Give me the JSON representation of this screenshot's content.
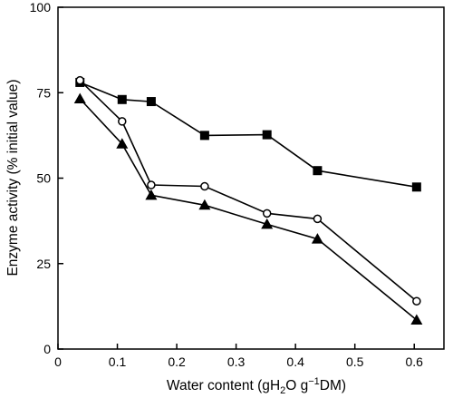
{
  "chart_data": {
    "type": "line",
    "title": "",
    "xlabel": "Water content (gH₂Og⁻¹DM)",
    "xlabel_parts": {
      "prefix": "Water content (g",
      "h": "H",
      "sub": "2",
      "o": "O g",
      "sup": "−1",
      "suffix": "DM)"
    },
    "ylabel": "Enzyme activity (% initial value)",
    "xlim": [
      0,
      0.65
    ],
    "ylim": [
      0,
      100
    ],
    "x_ticks": [
      0,
      0.1,
      0.2,
      0.3,
      0.4,
      0.5,
      0.6
    ],
    "x_tick_labels": [
      "0",
      "0.1",
      "0.2",
      "0.3",
      "0.4",
      "0.5",
      "0.6"
    ],
    "y_ticks": [
      0,
      25,
      50,
      75,
      100
    ],
    "y_tick_labels": [
      "0",
      "25",
      "50",
      "75",
      "100"
    ],
    "grid": false,
    "legend": "none",
    "series": [
      {
        "marker": "square",
        "fill": "#000000",
        "points": [
          {
            "x": 0.037,
            "y": 78
          },
          {
            "x": 0.108,
            "y": 73
          },
          {
            "x": 0.157,
            "y": 72.4
          },
          {
            "x": 0.247,
            "y": 62.5
          },
          {
            "x": 0.352,
            "y": 62.7
          },
          {
            "x": 0.437,
            "y": 52.2
          },
          {
            "x": 0.604,
            "y": 47.4
          }
        ]
      },
      {
        "marker": "circle",
        "fill": "#ffffff",
        "points": [
          {
            "x": 0.037,
            "y": 78.6
          },
          {
            "x": 0.108,
            "y": 66.6
          },
          {
            "x": 0.157,
            "y": 48
          },
          {
            "x": 0.247,
            "y": 47.6
          },
          {
            "x": 0.352,
            "y": 39.7
          },
          {
            "x": 0.437,
            "y": 38.1
          },
          {
            "x": 0.604,
            "y": 14
          }
        ]
      },
      {
        "marker": "triangle",
        "fill": "#000000",
        "points": [
          {
            "x": 0.037,
            "y": 73.2
          },
          {
            "x": 0.108,
            "y": 60
          },
          {
            "x": 0.157,
            "y": 45
          },
          {
            "x": 0.247,
            "y": 42.1
          },
          {
            "x": 0.352,
            "y": 36.5
          },
          {
            "x": 0.437,
            "y": 32.2
          },
          {
            "x": 0.604,
            "y": 8.5
          }
        ]
      }
    ]
  }
}
